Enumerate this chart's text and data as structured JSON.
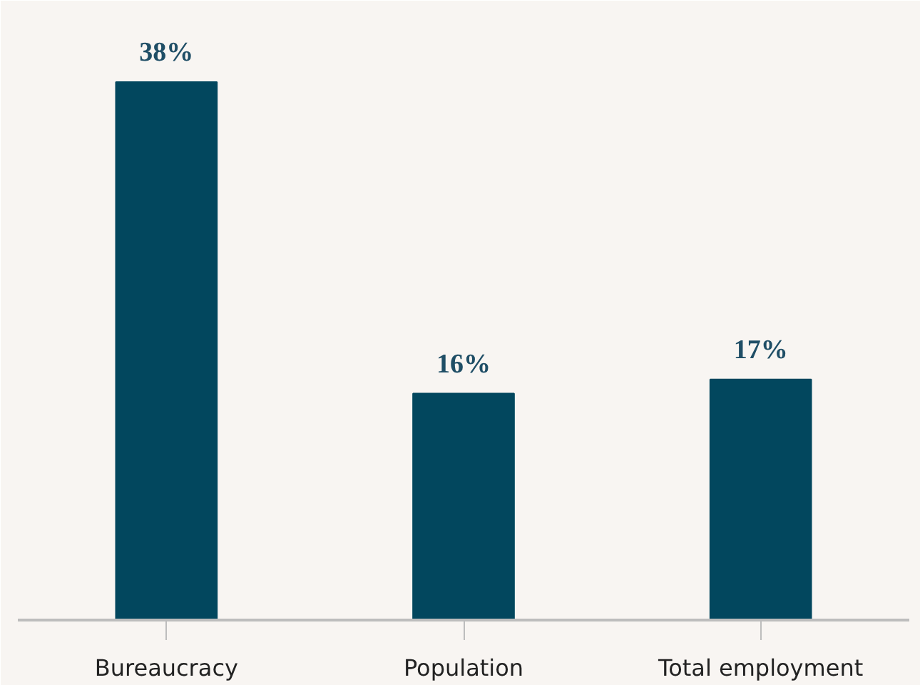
{
  "chart_data": {
    "type": "bar",
    "categories": [
      "Bureaucracy",
      "Population",
      "Total employment"
    ],
    "values": [
      38,
      16,
      17
    ],
    "value_labels": [
      "38%",
      "16%",
      "17%"
    ],
    "color": "#02475e",
    "grid": false
  }
}
